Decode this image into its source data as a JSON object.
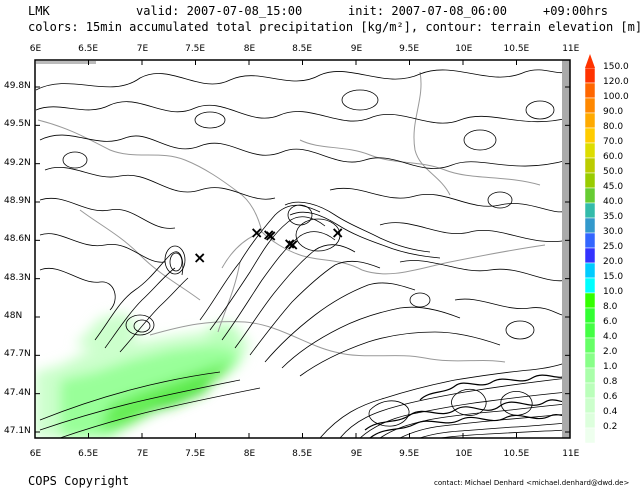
{
  "header": {
    "model": "LMK",
    "valid": "valid: 2007-07-08_15:00",
    "init": "init: 2007-07-08_06:00",
    "lead": "+09:00hrs",
    "description": "colors: 15min accumulated total precipitation [kg/m²], contour: terrain elevation [m]"
  },
  "axes": {
    "x_ticks": [
      "6E",
      "6.5E",
      "7E",
      "7.5E",
      "8E",
      "8.5E",
      "9E",
      "9.5E",
      "10E",
      "10.5E",
      "11E"
    ],
    "y_ticks": [
      "49.8N",
      "49.5N",
      "49.2N",
      "48.9N",
      "48.6N",
      "48.3N",
      "48N",
      "47.7N",
      "47.4N",
      "47.1N"
    ]
  },
  "colorbar": {
    "levels": [
      "150.0",
      "120.0",
      "100.0",
      "90.0",
      "80.0",
      "70.0",
      "60.0",
      "50.0",
      "45.0",
      "40.0",
      "35.0",
      "30.0",
      "25.0",
      "20.0",
      "15.0",
      "10.0",
      "8.0",
      "6.0",
      "4.0",
      "2.0",
      "1.0",
      "0.8",
      "0.6",
      "0.4",
      "0.2"
    ],
    "colors": [
      "#ff3300",
      "#ff6600",
      "#ff8800",
      "#ffaa00",
      "#ffcc00",
      "#dddd00",
      "#bbcc00",
      "#99cc00",
      "#66cc33",
      "#33bbaa",
      "#3399cc",
      "#3366ff",
      "#3333ff",
      "#00ccff",
      "#00ffff",
      "#33ff00",
      "#33ff33",
      "#44ff44",
      "#66ff66",
      "#88ff88",
      "#aaffaa",
      "#bbffbb",
      "#ccffcc",
      "#ddffdd",
      "#eeffee"
    ]
  },
  "markers": {
    "symbol": "×",
    "count": 7
  },
  "footer": {
    "copyright": "COPS Copyright",
    "contact": "contact: Michael Denhard <michael.denhard@dwd.de>"
  }
}
